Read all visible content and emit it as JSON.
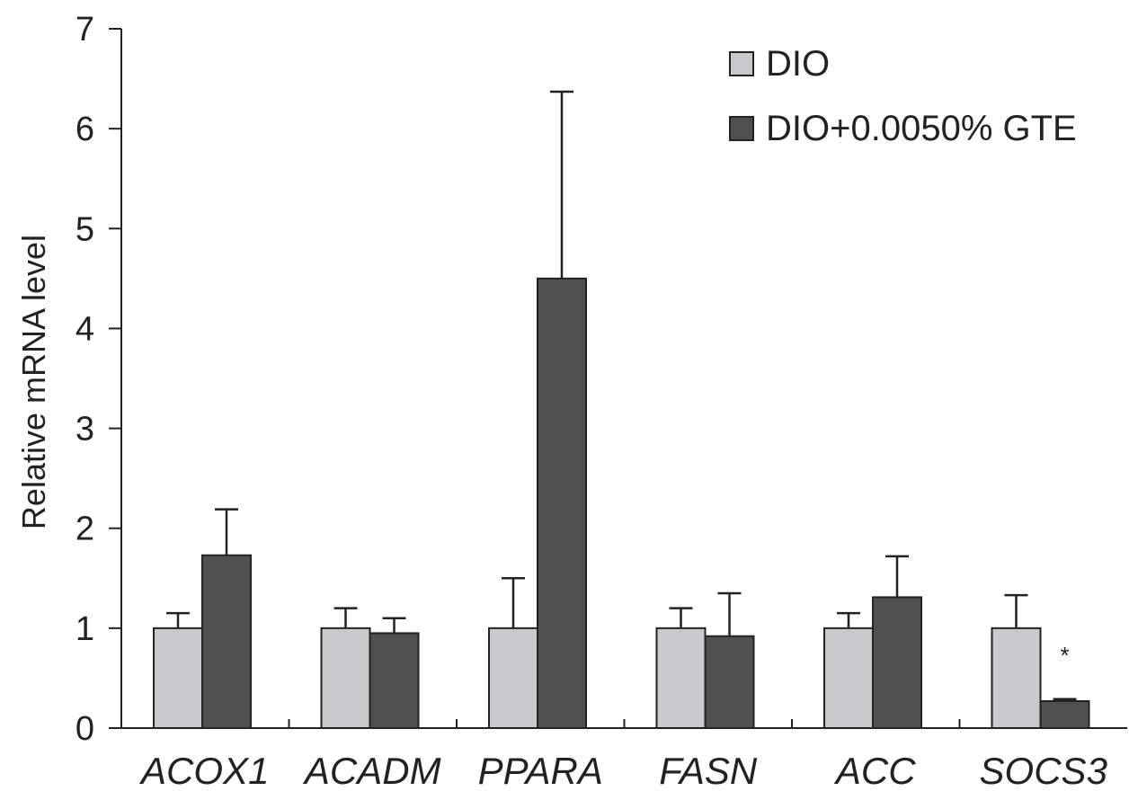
{
  "chart_data": {
    "type": "bar",
    "ylabel": "Relative mRNA level",
    "xlabel": "",
    "ylim": [
      0,
      7
    ],
    "yticks": [
      0,
      1,
      2,
      3,
      4,
      5,
      6,
      7
    ],
    "categories": [
      "ACOX1",
      "ACADM",
      "PPARA",
      "FASN",
      "ACC",
      "SOCS3"
    ],
    "series": [
      {
        "name": "DIO",
        "color": "#c8c9cb",
        "values": [
          1.0,
          1.0,
          1.0,
          1.0,
          1.0,
          1.0
        ],
        "errors": [
          0.15,
          0.2,
          0.5,
          0.2,
          0.15,
          0.33
        ]
      },
      {
        "name": "DIO+0.0050% GTE",
        "color": "#505050",
        "values": [
          1.73,
          0.95,
          4.5,
          0.92,
          1.31,
          0.27
        ],
        "errors": [
          0.46,
          0.15,
          1.87,
          0.43,
          0.41,
          0.02
        ]
      }
    ],
    "annotations": [
      {
        "category": "SOCS3",
        "series": 1,
        "text": "*"
      }
    ],
    "legend": {
      "position": "top-right"
    },
    "grid": false
  }
}
